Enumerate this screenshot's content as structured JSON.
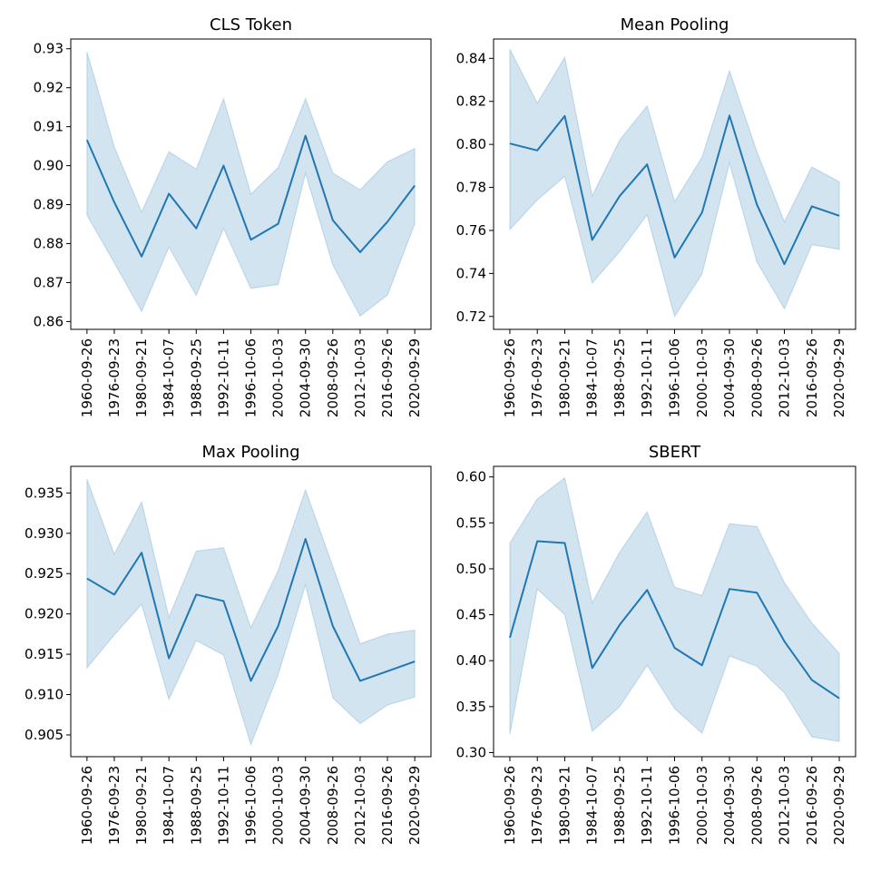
{
  "chart_data": [
    {
      "type": "line",
      "title": "CLS Token",
      "xlabel": "",
      "ylabel": "",
      "x": [
        "1960-09-26",
        "1976-09-23",
        "1980-09-21",
        "1984-10-07",
        "1988-09-25",
        "1992-10-11",
        "1996-10-06",
        "2000-10-03",
        "2004-09-30",
        "2008-09-26",
        "2012-10-03",
        "2016-09-26",
        "2020-09-29"
      ],
      "values": [
        0.9066,
        0.8906,
        0.8767,
        0.8928,
        0.8839,
        0.9,
        0.881,
        0.8851,
        0.9077,
        0.886,
        0.8778,
        0.8856,
        0.8949
      ],
      "lower": [
        0.8873,
        0.8751,
        0.8626,
        0.8791,
        0.8667,
        0.8839,
        0.8685,
        0.8695,
        0.8981,
        0.8745,
        0.8614,
        0.8668,
        0.8851
      ],
      "upper": [
        0.9292,
        0.9048,
        0.8881,
        0.9036,
        0.8991,
        0.9172,
        0.8927,
        0.8995,
        0.9172,
        0.8981,
        0.8938,
        0.901,
        0.9044
      ],
      "yticks": [
        "0.86",
        "0.87",
        "0.88",
        "0.89",
        "0.90",
        "0.91",
        "0.92",
        "0.93"
      ],
      "ylim": [
        0.858,
        0.9325
      ],
      "grid": false,
      "line_color": "#1f77b4",
      "band_color": "#1f77b4"
    },
    {
      "type": "line",
      "title": "Mean Pooling",
      "xlabel": "",
      "ylabel": "",
      "x": [
        "1960-09-26",
        "1976-09-23",
        "1980-09-21",
        "1984-10-07",
        "1988-09-25",
        "1992-10-11",
        "1996-10-06",
        "2000-10-03",
        "2004-09-30",
        "2008-09-26",
        "2012-10-03",
        "2016-09-26",
        "2020-09-29"
      ],
      "values": [
        0.8004,
        0.7972,
        0.8132,
        0.7556,
        0.776,
        0.7907,
        0.7474,
        0.7683,
        0.8134,
        0.772,
        0.7443,
        0.7712,
        0.7668
      ],
      "lower": [
        0.7604,
        0.7742,
        0.7851,
        0.7355,
        0.7502,
        0.7672,
        0.72,
        0.7398,
        0.7913,
        0.7453,
        0.7236,
        0.7534,
        0.7512
      ],
      "upper": [
        0.8443,
        0.8192,
        0.8405,
        0.776,
        0.802,
        0.8179,
        0.7734,
        0.794,
        0.8342,
        0.7966,
        0.764,
        0.7895,
        0.7826
      ],
      "yticks": [
        "0.72",
        "0.74",
        "0.76",
        "0.78",
        "0.80",
        "0.82",
        "0.84"
      ],
      "ylim": [
        0.714,
        0.849
      ],
      "grid": false,
      "line_color": "#1f77b4",
      "band_color": "#1f77b4"
    },
    {
      "type": "line",
      "title": "Max Pooling",
      "xlabel": "",
      "ylabel": "",
      "x": [
        "1960-09-26",
        "1976-09-23",
        "1980-09-21",
        "1984-10-07",
        "1988-09-25",
        "1992-10-11",
        "1996-10-06",
        "2000-10-03",
        "2004-09-30",
        "2008-09-26",
        "2012-10-03",
        "2016-09-26",
        "2020-09-29"
      ],
      "values": [
        0.9244,
        0.9224,
        0.9276,
        0.9145,
        0.9224,
        0.9216,
        0.9117,
        0.9185,
        0.9293,
        0.9185,
        0.9117,
        0.9129,
        0.9141
      ],
      "lower": [
        0.9133,
        0.9174,
        0.9212,
        0.9094,
        0.9167,
        0.9149,
        0.9038,
        0.9125,
        0.9236,
        0.9096,
        0.9064,
        0.9087,
        0.9097
      ],
      "upper": [
        0.9367,
        0.9274,
        0.9339,
        0.9196,
        0.9278,
        0.9282,
        0.9183,
        0.9254,
        0.9354,
        0.9259,
        0.9163,
        0.9175,
        0.918
      ],
      "yticks": [
        "0.905",
        "0.910",
        "0.915",
        "0.920",
        "0.925",
        "0.930",
        "0.935"
      ],
      "ylim": [
        0.9023,
        0.9383
      ],
      "grid": false,
      "line_color": "#1f77b4",
      "band_color": "#1f77b4"
    },
    {
      "type": "line",
      "title": "SBERT",
      "xlabel": "",
      "ylabel": "",
      "x": [
        "1960-09-26",
        "1976-09-23",
        "1980-09-21",
        "1984-10-07",
        "1988-09-25",
        "1992-10-11",
        "1996-10-06",
        "2000-10-03",
        "2004-09-30",
        "2008-09-26",
        "2012-10-03",
        "2016-09-26",
        "2020-09-29"
      ],
      "values": [
        0.425,
        0.53,
        0.528,
        0.392,
        0.439,
        0.477,
        0.414,
        0.395,
        0.478,
        0.474,
        0.421,
        0.379,
        0.359
      ],
      "lower": [
        0.32,
        0.478,
        0.45,
        0.323,
        0.35,
        0.395,
        0.348,
        0.321,
        0.405,
        0.394,
        0.365,
        0.317,
        0.312
      ],
      "upper": [
        0.528,
        0.576,
        0.599,
        0.463,
        0.518,
        0.562,
        0.48,
        0.471,
        0.549,
        0.546,
        0.485,
        0.441,
        0.408
      ],
      "yticks": [
        "0.30",
        "0.35",
        "0.40",
        "0.45",
        "0.50",
        "0.55",
        "0.60"
      ],
      "ylim": [
        0.2955,
        0.6115
      ],
      "grid": false,
      "line_color": "#1f77b4",
      "band_color": "#1f77b4"
    }
  ]
}
